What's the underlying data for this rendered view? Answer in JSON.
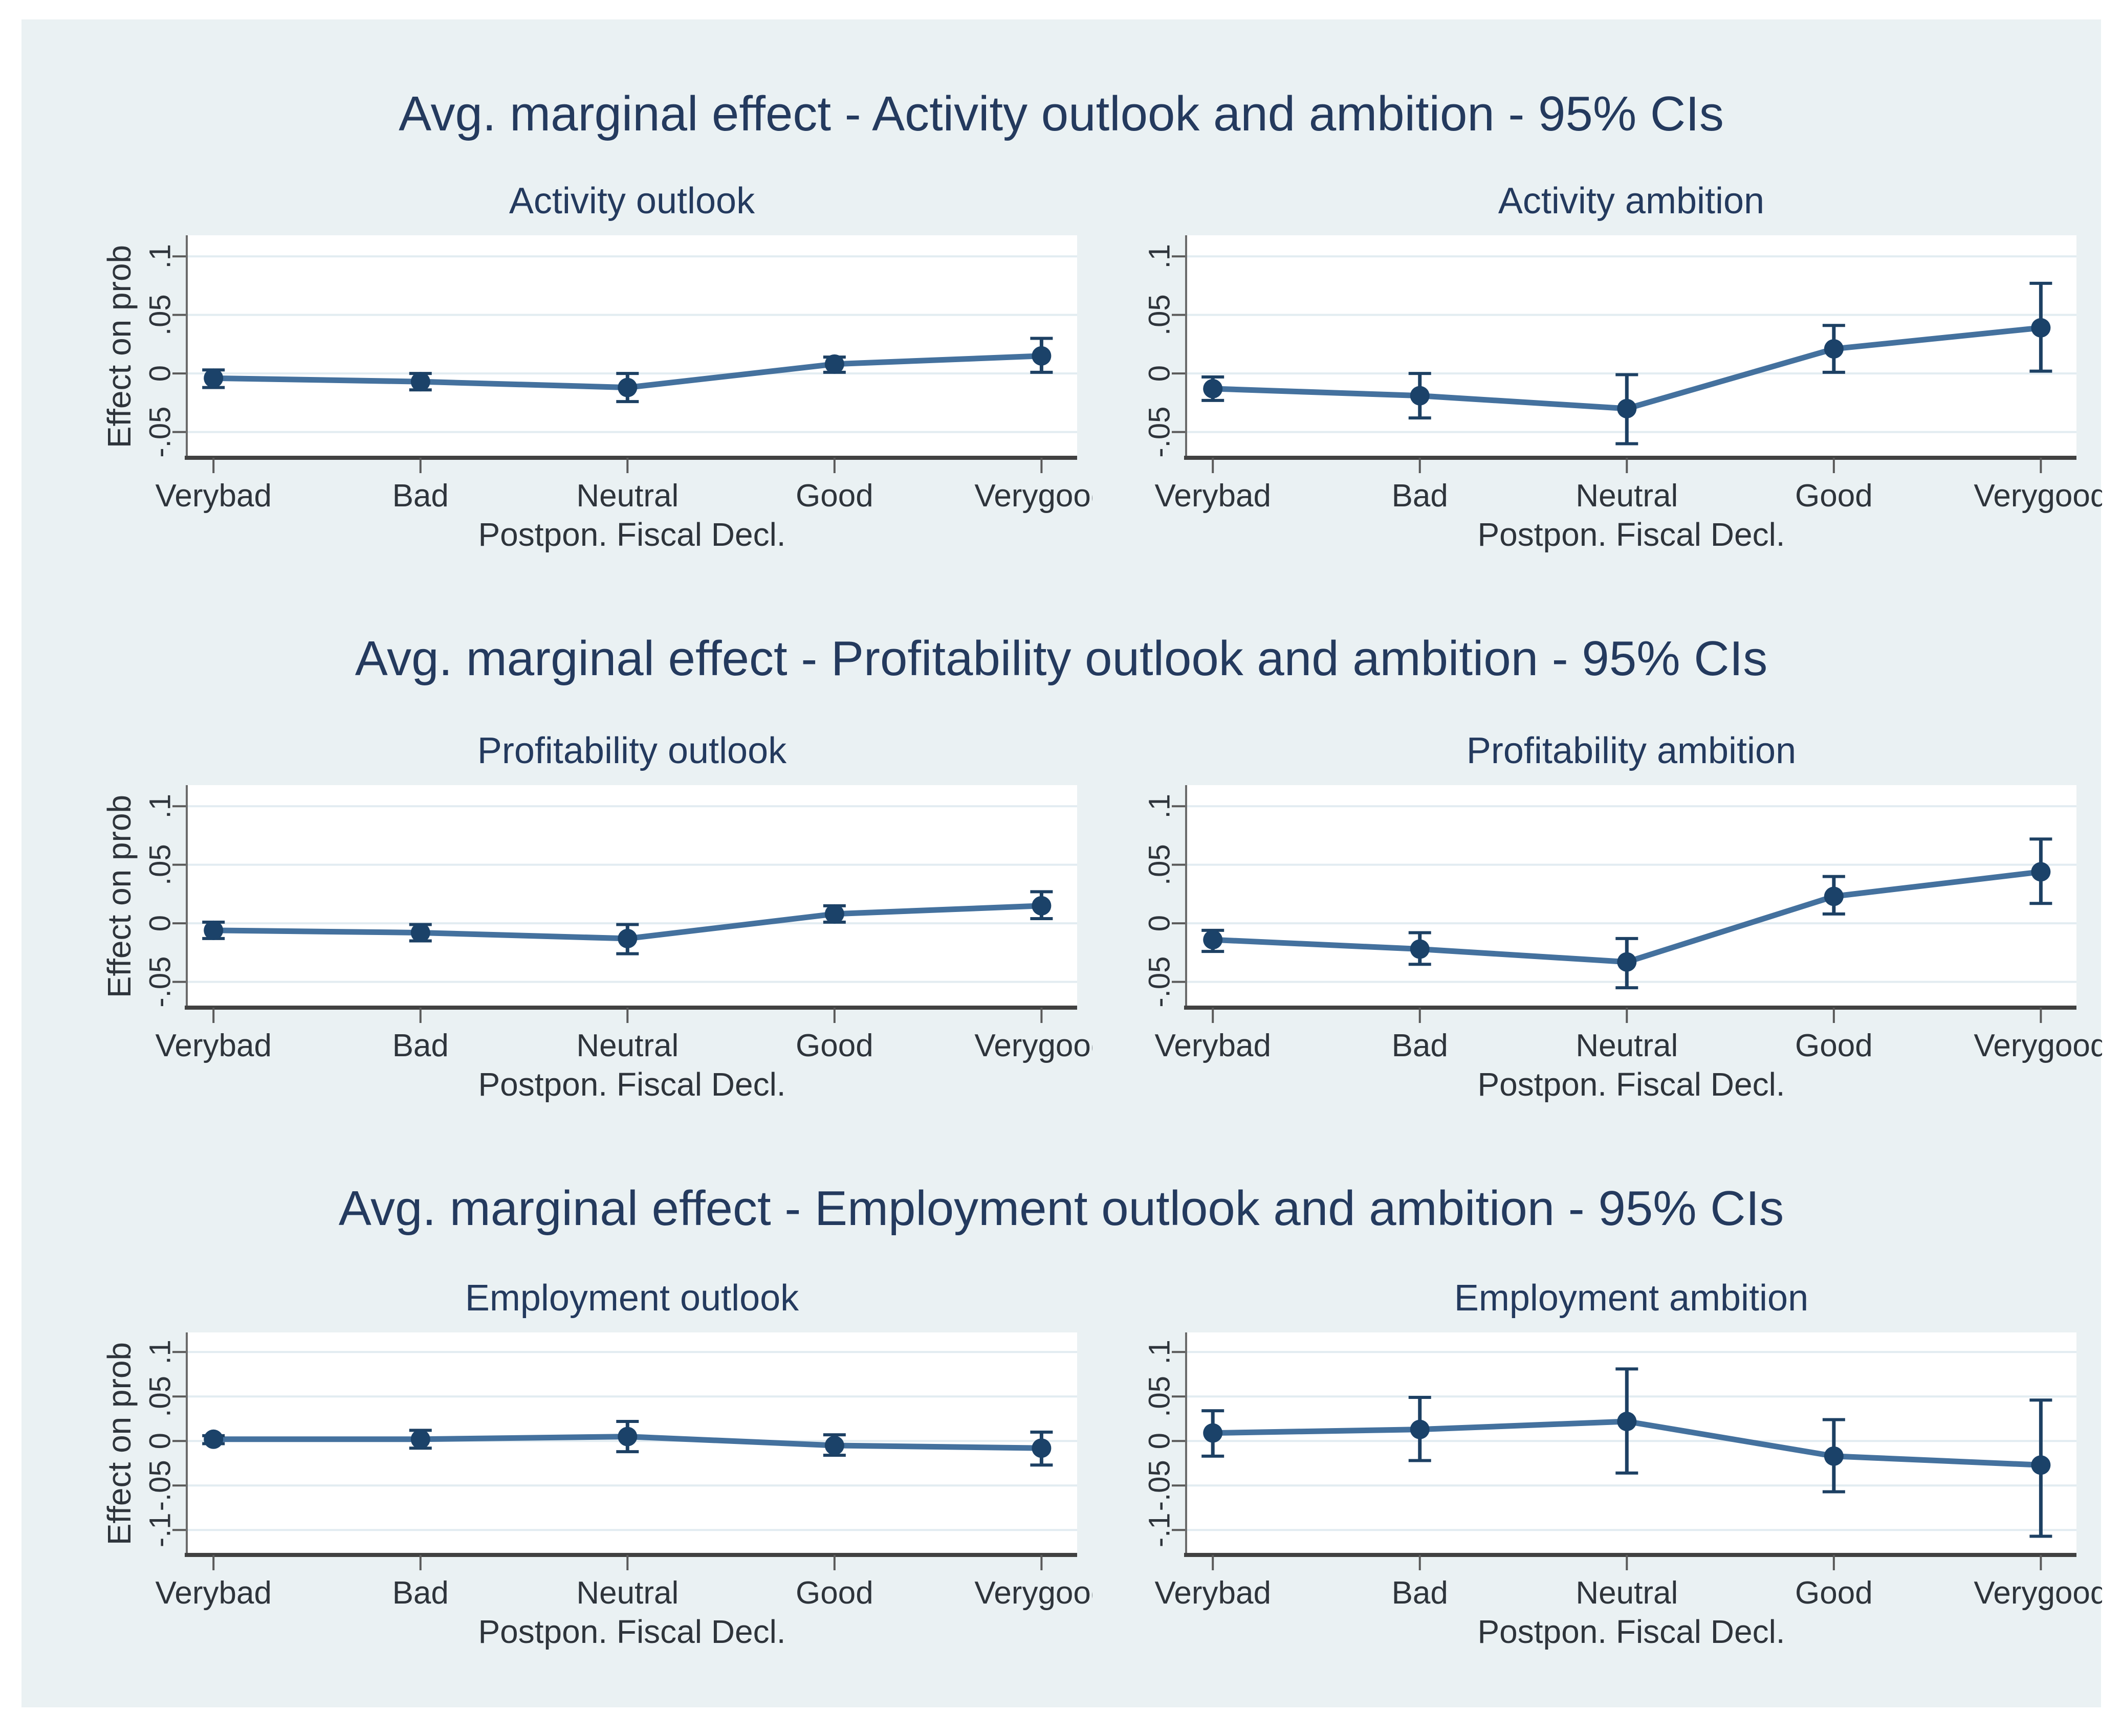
{
  "page": {
    "background": "#ffffff",
    "panel_background": "#eaf1f3"
  },
  "style": {
    "plot_bg": "#ffffff",
    "grid_color": "#e2ecf1",
    "axis_left_color": "#6b6b6b",
    "axis_bottom_color": "#414141",
    "tick_color": "#5a5a5a",
    "text_color": "#2e343b",
    "title_color": "#243a5e",
    "marker_color": "#1b4269",
    "error_bar_color": "#1d4063",
    "series_line_color": "#44719e"
  },
  "rows": [
    {
      "title": "Avg. marginal effect - Activity outlook and ambition - 95% CIs"
    },
    {
      "title": "Avg. marginal effect - Profitability outlook and ambition - 95% CIs"
    },
    {
      "title": "Avg. marginal effect - Employment outlook and ambition - 95% CIs"
    }
  ],
  "chart_data": [
    {
      "type": "line",
      "row": 1,
      "panel": "left",
      "title": "Activity outlook",
      "xlabel": "Postpon. Fiscal Decl.",
      "ylabel": "Effect on prob",
      "categories": [
        "Verybad",
        "Bad",
        "Neutral",
        "Good",
        "Verygood"
      ],
      "values": [
        -0.004,
        -0.007,
        -0.012,
        0.008,
        0.015
      ],
      "ci_low": [
        -0.012,
        -0.014,
        -0.024,
        0.001,
        0.001
      ],
      "ci_high": [
        0.003,
        0.0,
        0.0,
        0.014,
        0.03
      ],
      "ylim": [
        -0.072,
        0.118
      ],
      "yticks": [
        -0.05,
        0,
        0.05,
        0.1
      ],
      "ytick_labels": [
        "-.05",
        "0",
        ".05",
        ".1"
      ],
      "grid": true,
      "legend_position": "none",
      "last_xlabel_clipped": true
    },
    {
      "type": "line",
      "row": 1,
      "panel": "right",
      "title": "Activity ambition",
      "xlabel": "Postpon. Fiscal Decl.",
      "categories": [
        "Verybad",
        "Bad",
        "Neutral",
        "Good",
        "Verygood"
      ],
      "values": [
        -0.013,
        -0.019,
        -0.03,
        0.021,
        0.039
      ],
      "ci_low": [
        -0.023,
        -0.038,
        -0.06,
        0.001,
        0.002
      ],
      "ci_high": [
        -0.003,
        0.0,
        -0.001,
        0.041,
        0.077
      ],
      "ylim": [
        -0.072,
        0.118
      ],
      "yticks": [
        -0.05,
        0,
        0.05,
        0.1
      ],
      "ytick_labels": [
        "-.05",
        "0",
        ".05",
        ".1"
      ],
      "grid": true,
      "legend_position": "none",
      "last_xlabel_clipped": false
    },
    {
      "type": "line",
      "row": 2,
      "panel": "left",
      "title": "Profitability outlook",
      "xlabel": "Postpon. Fiscal Decl.",
      "ylabel": "Effect on prob",
      "categories": [
        "Verybad",
        "Bad",
        "Neutral",
        "Good",
        "Verygood"
      ],
      "values": [
        -0.006,
        -0.008,
        -0.013,
        0.008,
        0.015
      ],
      "ci_low": [
        -0.013,
        -0.015,
        -0.026,
        0.001,
        0.004
      ],
      "ci_high": [
        0.001,
        -0.001,
        -0.001,
        0.015,
        0.027
      ],
      "ylim": [
        -0.072,
        0.118
      ],
      "yticks": [
        -0.05,
        0,
        0.05,
        0.1
      ],
      "ytick_labels": [
        "-.05",
        "0",
        ".05",
        ".1"
      ],
      "grid": true,
      "legend_position": "none",
      "last_xlabel_clipped": true
    },
    {
      "type": "line",
      "row": 2,
      "panel": "right",
      "title": "Profitability ambition",
      "xlabel": "Postpon. Fiscal Decl.",
      "categories": [
        "Verybad",
        "Bad",
        "Neutral",
        "Good",
        "Verygood"
      ],
      "values": [
        -0.014,
        -0.022,
        -0.033,
        0.023,
        0.044
      ],
      "ci_low": [
        -0.024,
        -0.035,
        -0.055,
        0.008,
        0.017
      ],
      "ci_high": [
        -0.006,
        -0.008,
        -0.013,
        0.04,
        0.072
      ],
      "ylim": [
        -0.072,
        0.118
      ],
      "yticks": [
        -0.05,
        0,
        0.05,
        0.1
      ],
      "ytick_labels": [
        "-.05",
        "0",
        ".05",
        ".1"
      ],
      "grid": true,
      "legend_position": "none",
      "last_xlabel_clipped": false
    },
    {
      "type": "line",
      "row": 3,
      "panel": "left",
      "title": "Employment outlook",
      "xlabel": "Postpon. Fiscal Decl.",
      "ylabel": "Effect on prob",
      "categories": [
        "Verybad",
        "Bad",
        "Neutral",
        "Good",
        "Verygood"
      ],
      "values": [
        0.002,
        0.002,
        0.005,
        -0.005,
        -0.008
      ],
      "ci_low": [
        -0.003,
        -0.008,
        -0.012,
        -0.016,
        -0.027
      ],
      "ci_high": [
        0.006,
        0.012,
        0.022,
        0.007,
        0.01
      ],
      "ylim": [
        -0.128,
        0.122
      ],
      "yticks": [
        -0.1,
        -0.05,
        0,
        0.05,
        0.1
      ],
      "ytick_labels": [
        "-.1",
        "-.05",
        "0",
        ".05",
        ".1"
      ],
      "grid": true,
      "legend_position": "none",
      "last_xlabel_clipped": true
    },
    {
      "type": "line",
      "row": 3,
      "panel": "right",
      "title": "Employment ambition",
      "xlabel": "Postpon. Fiscal Decl.",
      "categories": [
        "Verybad",
        "Bad",
        "Neutral",
        "Good",
        "Verygood"
      ],
      "values": [
        0.009,
        0.013,
        0.022,
        -0.017,
        -0.027
      ],
      "ci_low": [
        -0.017,
        -0.022,
        -0.036,
        -0.057,
        -0.107
      ],
      "ci_high": [
        0.034,
        0.049,
        0.081,
        0.024,
        0.046
      ],
      "ylim": [
        -0.128,
        0.122
      ],
      "yticks": [
        -0.1,
        -0.05,
        0,
        0.05,
        0.1
      ],
      "ytick_labels": [
        "-.1",
        "-.05",
        "0",
        ".05",
        ".1"
      ],
      "grid": true,
      "legend_position": "none",
      "last_xlabel_clipped": false
    }
  ]
}
